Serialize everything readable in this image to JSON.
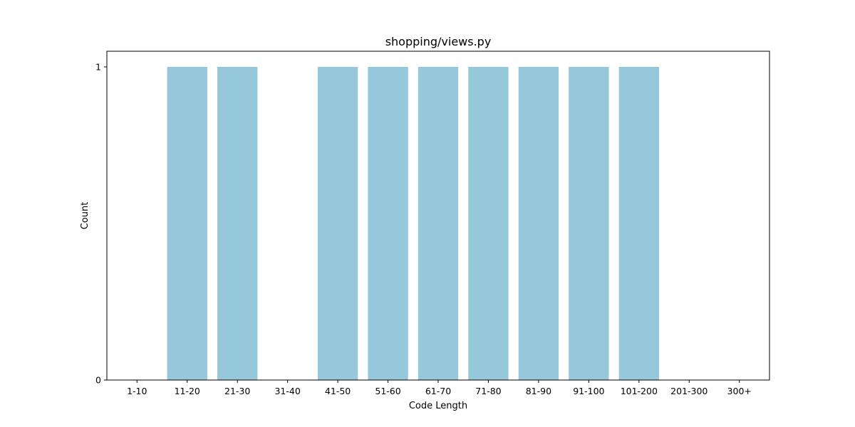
{
  "chart_data": {
    "type": "bar",
    "title": "shopping/views.py",
    "xlabel": "Code Length",
    "ylabel": "Count",
    "categories": [
      "1-10",
      "11-20",
      "21-30",
      "31-40",
      "41-50",
      "51-60",
      "61-70",
      "71-80",
      "81-90",
      "91-100",
      "101-200",
      "201-300",
      "300+"
    ],
    "values": [
      0,
      1,
      1,
      0,
      1,
      1,
      1,
      1,
      1,
      1,
      1,
      0,
      0
    ],
    "yticks": [
      "0",
      "1"
    ],
    "ylim": [
      0,
      1.05
    ],
    "grid": false,
    "legend": "none",
    "bar_color": "#96c8dc"
  }
}
